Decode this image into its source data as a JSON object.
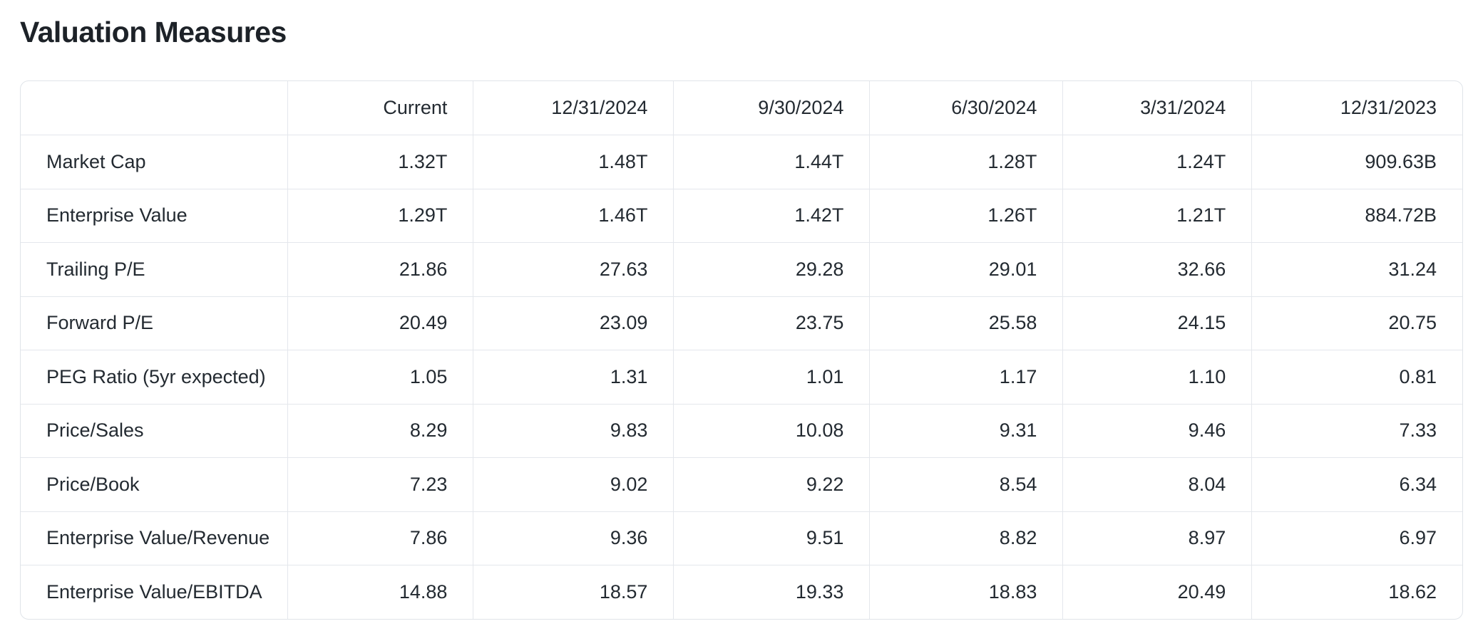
{
  "page": {
    "title": "Valuation Measures"
  },
  "colors": {
    "background": "#ffffff",
    "text": "#232a31",
    "title_text": "#1d2228",
    "border": "#e0e4e9"
  },
  "table": {
    "columns": [
      "",
      "Current",
      "12/31/2024",
      "9/30/2024",
      "6/30/2024",
      "3/31/2024",
      "12/31/2023"
    ],
    "rows": [
      {
        "label": "Market Cap",
        "values": [
          "1.32T",
          "1.48T",
          "1.44T",
          "1.28T",
          "1.24T",
          "909.63B"
        ]
      },
      {
        "label": "Enterprise Value",
        "values": [
          "1.29T",
          "1.46T",
          "1.42T",
          "1.26T",
          "1.21T",
          "884.72B"
        ]
      },
      {
        "label": "Trailing P/E",
        "values": [
          "21.86",
          "27.63",
          "29.28",
          "29.01",
          "32.66",
          "31.24"
        ]
      },
      {
        "label": "Forward P/E",
        "values": [
          "20.49",
          "23.09",
          "23.75",
          "25.58",
          "24.15",
          "20.75"
        ]
      },
      {
        "label": "PEG Ratio (5yr expected)",
        "values": [
          "1.05",
          "1.31",
          "1.01",
          "1.17",
          "1.10",
          "0.81"
        ]
      },
      {
        "label": "Price/Sales",
        "values": [
          "8.29",
          "9.83",
          "10.08",
          "9.31",
          "9.46",
          "7.33"
        ]
      },
      {
        "label": "Price/Book",
        "values": [
          "7.23",
          "9.02",
          "9.22",
          "8.54",
          "8.04",
          "6.34"
        ]
      },
      {
        "label": "Enterprise Value/Revenue",
        "values": [
          "7.86",
          "9.36",
          "9.51",
          "8.82",
          "8.97",
          "6.97"
        ]
      },
      {
        "label": "Enterprise Value/EBITDA",
        "values": [
          "14.88",
          "18.57",
          "19.33",
          "18.83",
          "20.49",
          "18.62"
        ]
      }
    ]
  }
}
